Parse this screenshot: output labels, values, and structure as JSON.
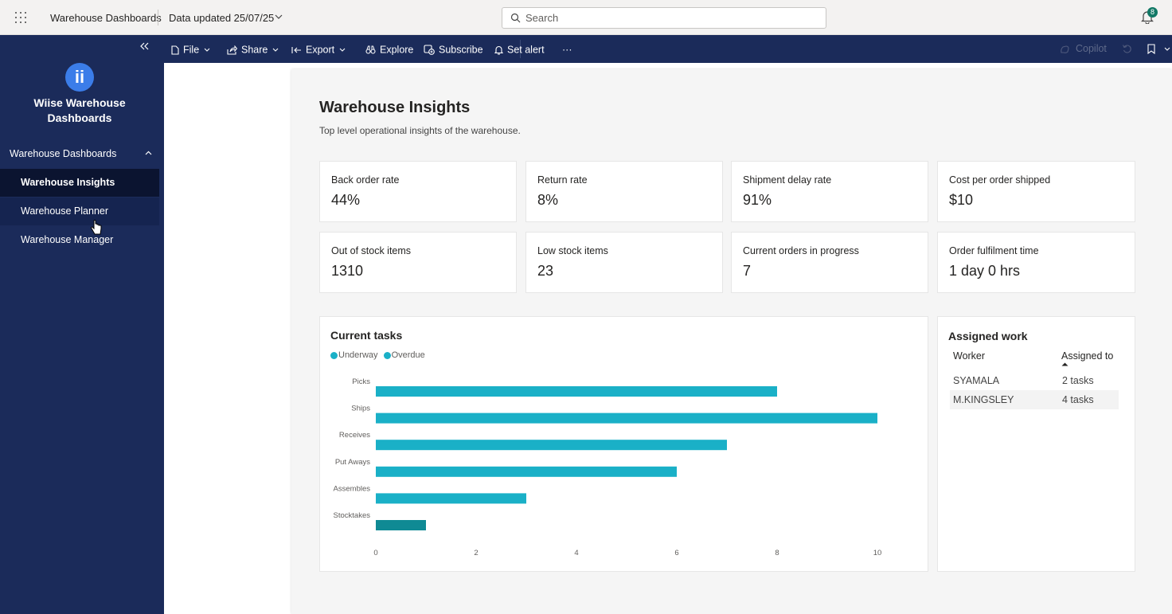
{
  "topbar": {
    "app_title": "Warehouse Dashboards",
    "data_updated": "Data updated 25/07/25",
    "search_placeholder": "Search",
    "notification_count": "8"
  },
  "sidebar": {
    "logo_text": "ii",
    "brand": "Wiise Warehouse Dashboards",
    "section_title": "Warehouse Dashboards",
    "items": [
      {
        "label": "Warehouse Insights",
        "state": "active"
      },
      {
        "label": "Warehouse Planner",
        "state": "hover"
      },
      {
        "label": "Warehouse Manager",
        "state": "normal"
      }
    ]
  },
  "toolbar": {
    "file": "File",
    "share": "Share",
    "export": "Export",
    "explore": "Explore",
    "subscribe": "Subscribe",
    "set_alert": "Set alert",
    "more": "···",
    "copilot": "Copilot"
  },
  "report": {
    "title": "Warehouse Insights",
    "subtitle": "Top level operational insights of the warehouse.",
    "kpis": [
      {
        "label": "Back order rate",
        "value": "44%"
      },
      {
        "label": "Return rate",
        "value": "8%"
      },
      {
        "label": "Shipment delay rate",
        "value": "91%"
      },
      {
        "label": "Cost per order shipped",
        "value": "$10"
      },
      {
        "label": "Out of stock items",
        "value": "1310"
      },
      {
        "label": "Low stock items",
        "value": "23"
      },
      {
        "label": "Current orders in progress",
        "value": "7"
      },
      {
        "label": "Order fulfilment time",
        "value": "1 day 0 hrs"
      }
    ],
    "assigned_work": {
      "title": "Assigned work",
      "col_worker": "Worker",
      "col_assigned": "Assigned to",
      "rows": [
        {
          "worker": "SYAMALA",
          "assigned": "2 tasks"
        },
        {
          "worker": "M.KINGSLEY",
          "assigned": "4 tasks"
        }
      ]
    }
  },
  "colors": {
    "sidebar": "#1b2b5a",
    "underway": "#1ab0c7",
    "overdue": "#0f8a94",
    "badge": "#117865"
  },
  "chart_data": {
    "type": "bar",
    "orientation": "horizontal",
    "title": "Current tasks",
    "legend": [
      "Underway",
      "Overdue"
    ],
    "legend_position": "top-left",
    "categories": [
      "Picks",
      "Ships",
      "Receives",
      "Put Aways",
      "Assembles",
      "Stocktakes"
    ],
    "series": [
      {
        "name": "Underway",
        "color": "#1ab0c7",
        "values": [
          8,
          10,
          7,
          6,
          3,
          0
        ]
      },
      {
        "name": "Overdue",
        "color": "#0f8a94",
        "values": [
          0,
          0,
          0,
          0,
          0,
          1
        ]
      }
    ],
    "xlim": [
      0,
      10
    ],
    "xticks": [
      0,
      2,
      4,
      6,
      8,
      10
    ],
    "grid": false
  }
}
